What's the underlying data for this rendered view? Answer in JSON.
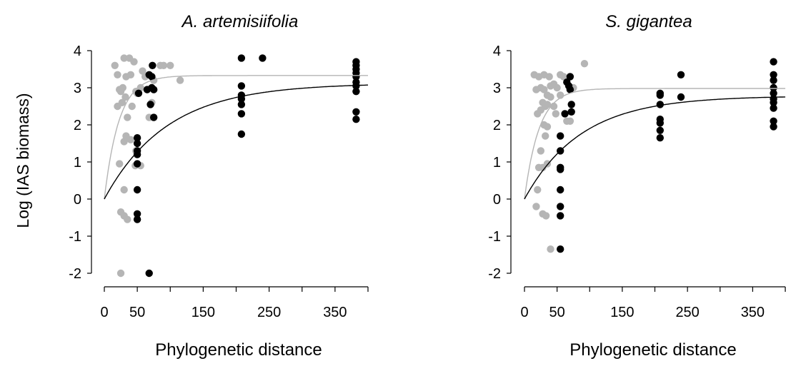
{
  "figure": {
    "ylabel": "Log (IAS biomass)"
  },
  "colors": {
    "gray_series": "#b5b5b5",
    "black_series": "#000000",
    "gray_curve": "#b5b5b5",
    "black_curve": "#000000",
    "axis": "#000000"
  },
  "chart_data": [
    {
      "type": "scatter",
      "title": "A. artemisiifolia",
      "xlabel": "Phylogenetic distance",
      "ylabel": "Log (IAS biomass)",
      "xlim": [
        0,
        400
      ],
      "ylim": [
        -2,
        4
      ],
      "x_ticks": [
        0,
        50,
        150,
        250,
        350
      ],
      "x_minor_ticks": [
        100,
        200,
        300,
        400
      ],
      "y_ticks": [
        -2,
        -1,
        0,
        1,
        2,
        3,
        4
      ],
      "grid": false,
      "series": [
        {
          "color": "gray",
          "points": [
            [
              16,
              3.6
            ],
            [
              20,
              3.35
            ],
            [
              23,
              2.95
            ],
            [
              25,
              2.9
            ],
            [
              28,
              3.0
            ],
            [
              30,
              3.8
            ],
            [
              38,
              3.8
            ],
            [
              45,
              3.7
            ],
            [
              20,
              2.5
            ],
            [
              27,
              2.6
            ],
            [
              32,
              2.75
            ],
            [
              35,
              2.2
            ],
            [
              42,
              2.5
            ],
            [
              33,
              3.3
            ],
            [
              40,
              3.35
            ],
            [
              48,
              2.9
            ],
            [
              50,
              2.85
            ],
            [
              55,
              3.0
            ],
            [
              58,
              3.45
            ],
            [
              62,
              3.3
            ],
            [
              68,
              2.2
            ],
            [
              72,
              2.6
            ],
            [
              75,
              3.2
            ],
            [
              85,
              3.6
            ],
            [
              90,
              3.6
            ],
            [
              100,
              3.6
            ],
            [
              115,
              3.2
            ],
            [
              23,
              0.95
            ],
            [
              30,
              1.55
            ],
            [
              33,
              1.7
            ],
            [
              40,
              1.6
            ],
            [
              48,
              1.3
            ],
            [
              47,
              0.9
            ],
            [
              30,
              0.25
            ],
            [
              25,
              -0.35
            ],
            [
              30,
              -0.45
            ],
            [
              35,
              -0.55
            ],
            [
              25,
              -2.0
            ],
            [
              55,
              0.9
            ]
          ]
        },
        {
          "color": "black",
          "points": [
            [
              50,
              1.65
            ],
            [
              50,
              1.5
            ],
            [
              50,
              1.3
            ],
            [
              50,
              1.2
            ],
            [
              50,
              0.95
            ],
            [
              50,
              0.25
            ],
            [
              50,
              -0.4
            ],
            [
              50,
              -0.55
            ],
            [
              52,
              2.85
            ],
            [
              65,
              2.95
            ],
            [
              68,
              3.35
            ],
            [
              70,
              2.55
            ],
            [
              72,
              3.3
            ],
            [
              73,
              3.6
            ],
            [
              72,
              3.0
            ],
            [
              75,
              2.95
            ],
            [
              75,
              2.2
            ],
            [
              68,
              -2.0
            ],
            [
              208,
              3.8
            ],
            [
              208,
              3.05
            ],
            [
              208,
              2.8
            ],
            [
              208,
              2.7
            ],
            [
              208,
              2.55
            ],
            [
              208,
              2.3
            ],
            [
              208,
              1.75
            ],
            [
              240,
              3.8
            ],
            [
              382,
              3.7
            ],
            [
              382,
              3.6
            ],
            [
              382,
              3.5
            ],
            [
              382,
              3.4
            ],
            [
              382,
              3.3
            ],
            [
              382,
              3.15
            ],
            [
              382,
              3.05
            ],
            [
              382,
              2.9
            ],
            [
              382,
              2.35
            ],
            [
              382,
              2.15
            ]
          ]
        }
      ],
      "fit_curves": [
        {
          "color": "gray",
          "asymptote": 3.33,
          "rate": 0.045
        },
        {
          "color": "black",
          "asymptote": 3.12,
          "rate": 0.0105
        }
      ]
    },
    {
      "type": "scatter",
      "title": "S. gigantea",
      "xlabel": "Phylogenetic distance",
      "ylabel": "",
      "xlim": [
        0,
        400
      ],
      "ylim": [
        -2,
        4
      ],
      "x_ticks": [
        0,
        50,
        150,
        250,
        350
      ],
      "x_minor_ticks": [
        100,
        200,
        300,
        400
      ],
      "y_ticks": [
        -2,
        -1,
        0,
        1,
        2,
        3,
        4
      ],
      "grid": false,
      "series": [
        {
          "color": "gray",
          "points": [
            [
              15,
              3.35
            ],
            [
              22,
              3.3
            ],
            [
              30,
              3.35
            ],
            [
              38,
              3.3
            ],
            [
              18,
              2.95
            ],
            [
              25,
              3.0
            ],
            [
              30,
              2.95
            ],
            [
              35,
              2.8
            ],
            [
              40,
              3.05
            ],
            [
              45,
              3.1
            ],
            [
              50,
              3.0
            ],
            [
              55,
              3.35
            ],
            [
              60,
              3.3
            ],
            [
              20,
              2.3
            ],
            [
              25,
              2.4
            ],
            [
              28,
              2.6
            ],
            [
              32,
              2.5
            ],
            [
              35,
              2.55
            ],
            [
              40,
              2.75
            ],
            [
              45,
              2.5
            ],
            [
              48,
              2.3
            ],
            [
              55,
              2.8
            ],
            [
              65,
              2.1
            ],
            [
              70,
              2.1
            ],
            [
              75,
              3.0
            ],
            [
              92,
              3.65
            ],
            [
              30,
              2.0
            ],
            [
              32,
              1.7
            ],
            [
              35,
              1.95
            ],
            [
              25,
              1.3
            ],
            [
              20,
              0.25
            ],
            [
              22,
              0.85
            ],
            [
              28,
              0.85
            ],
            [
              35,
              0.95
            ],
            [
              18,
              -0.2
            ],
            [
              28,
              -0.4
            ],
            [
              33,
              -0.45
            ],
            [
              40,
              -1.35
            ]
          ]
        },
        {
          "color": "black",
          "points": [
            [
              55,
              1.7
            ],
            [
              55,
              1.3
            ],
            [
              55,
              0.85
            ],
            [
              55,
              0.8
            ],
            [
              55,
              0.25
            ],
            [
              55,
              -0.2
            ],
            [
              55,
              -0.45
            ],
            [
              55,
              -1.35
            ],
            [
              62,
              2.3
            ],
            [
              65,
              3.15
            ],
            [
              68,
              3.05
            ],
            [
              70,
              3.3
            ],
            [
              70,
              2.95
            ],
            [
              72,
              2.55
            ],
            [
              72,
              2.35
            ],
            [
              208,
              2.85
            ],
            [
              208,
              2.8
            ],
            [
              208,
              2.55
            ],
            [
              208,
              2.15
            ],
            [
              208,
              2.05
            ],
            [
              208,
              1.85
            ],
            [
              208,
              1.65
            ],
            [
              240,
              3.35
            ],
            [
              240,
              2.75
            ],
            [
              382,
              3.7
            ],
            [
              382,
              3.35
            ],
            [
              382,
              3.2
            ],
            [
              382,
              3.0
            ],
            [
              382,
              2.85
            ],
            [
              382,
              2.7
            ],
            [
              382,
              2.6
            ],
            [
              382,
              2.45
            ],
            [
              382,
              2.1
            ],
            [
              382,
              1.95
            ]
          ]
        }
      ],
      "fit_curves": [
        {
          "color": "gray",
          "asymptote": 2.98,
          "rate": 0.045
        },
        {
          "color": "black",
          "asymptote": 2.78,
          "rate": 0.0115
        }
      ]
    }
  ]
}
